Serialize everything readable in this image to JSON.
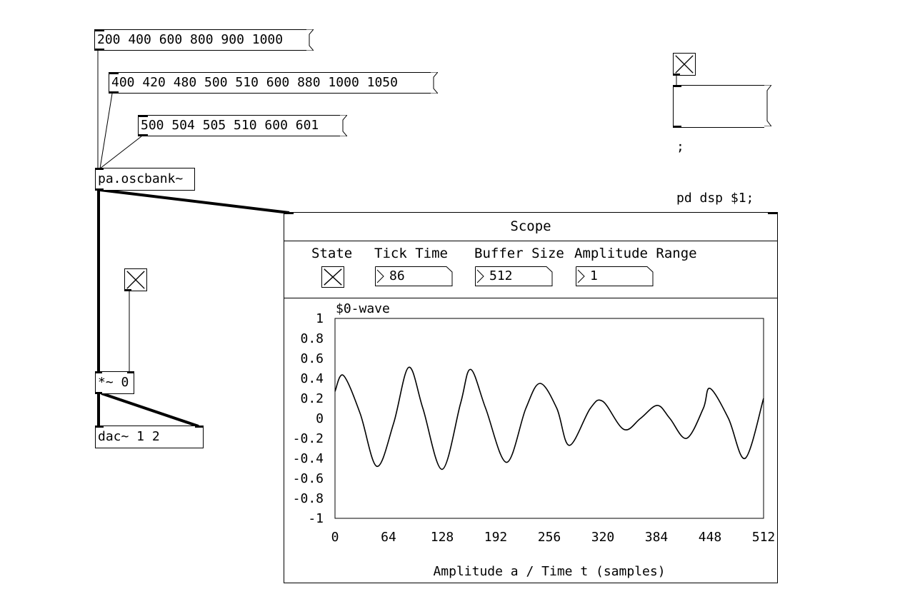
{
  "messages": {
    "freq_set_1": "200 400 600 800 900 1000",
    "freq_set_2": "400 420 480 500 510 600 880 1000 1050",
    "freq_set_3": "500 504 505 510 600 601",
    "dsp_line1": ";",
    "dsp_line2": "pd dsp $1;"
  },
  "objects": {
    "oscbank": "pa.oscbank~",
    "multiplier": "*~ 0",
    "dac": "dac~ 1 2"
  },
  "toggles": {
    "dsp_toggle": "checked",
    "gain_toggle": "checked",
    "scope_state": "checked"
  },
  "scope": {
    "title": "Scope",
    "controls": {
      "state_label": "State",
      "tick_time_label": "Tick Time",
      "tick_time_value": "86",
      "buffer_size_label": "Buffer Size",
      "buffer_size_value": "512",
      "amplitude_range_label": "Amplitude Range",
      "amplitude_range_value": "1"
    }
  },
  "chart_data": {
    "type": "line",
    "title": "$0-wave",
    "xlabel": "Amplitude a / Time t (samples)",
    "ylabel": "",
    "xlim": [
      0,
      512
    ],
    "ylim": [
      -1,
      1
    ],
    "x_ticks": [
      "0",
      "64",
      "128",
      "192",
      "256",
      "320",
      "384",
      "448",
      "512"
    ],
    "y_ticks": [
      "1",
      "0.8",
      "0.6",
      "0.4",
      "0.2",
      "0",
      "-0.2",
      "-0.4",
      "-0.6",
      "-0.8",
      "-1"
    ],
    "series": [
      {
        "x": [
          0,
          10,
          30,
          50,
          70,
          88,
          105,
          128,
          150,
          162,
          180,
          205,
          228,
          245,
          265,
          280,
          305,
          320,
          345,
          365,
          385,
          400,
          420,
          440,
          448,
          470,
          490,
          512
        ],
        "values": [
          0.27,
          0.43,
          0.05,
          -0.48,
          -0.05,
          0.51,
          0.1,
          -0.51,
          0.15,
          0.49,
          0.1,
          -0.44,
          0.1,
          0.35,
          0.1,
          -0.27,
          0.1,
          0.17,
          -0.11,
          0.0,
          0.13,
          0.0,
          -0.2,
          0.1,
          0.3,
          0.0,
          -0.4,
          0.2
        ]
      }
    ]
  },
  "colors": {
    "line": "#000000",
    "background": "#ffffff"
  }
}
